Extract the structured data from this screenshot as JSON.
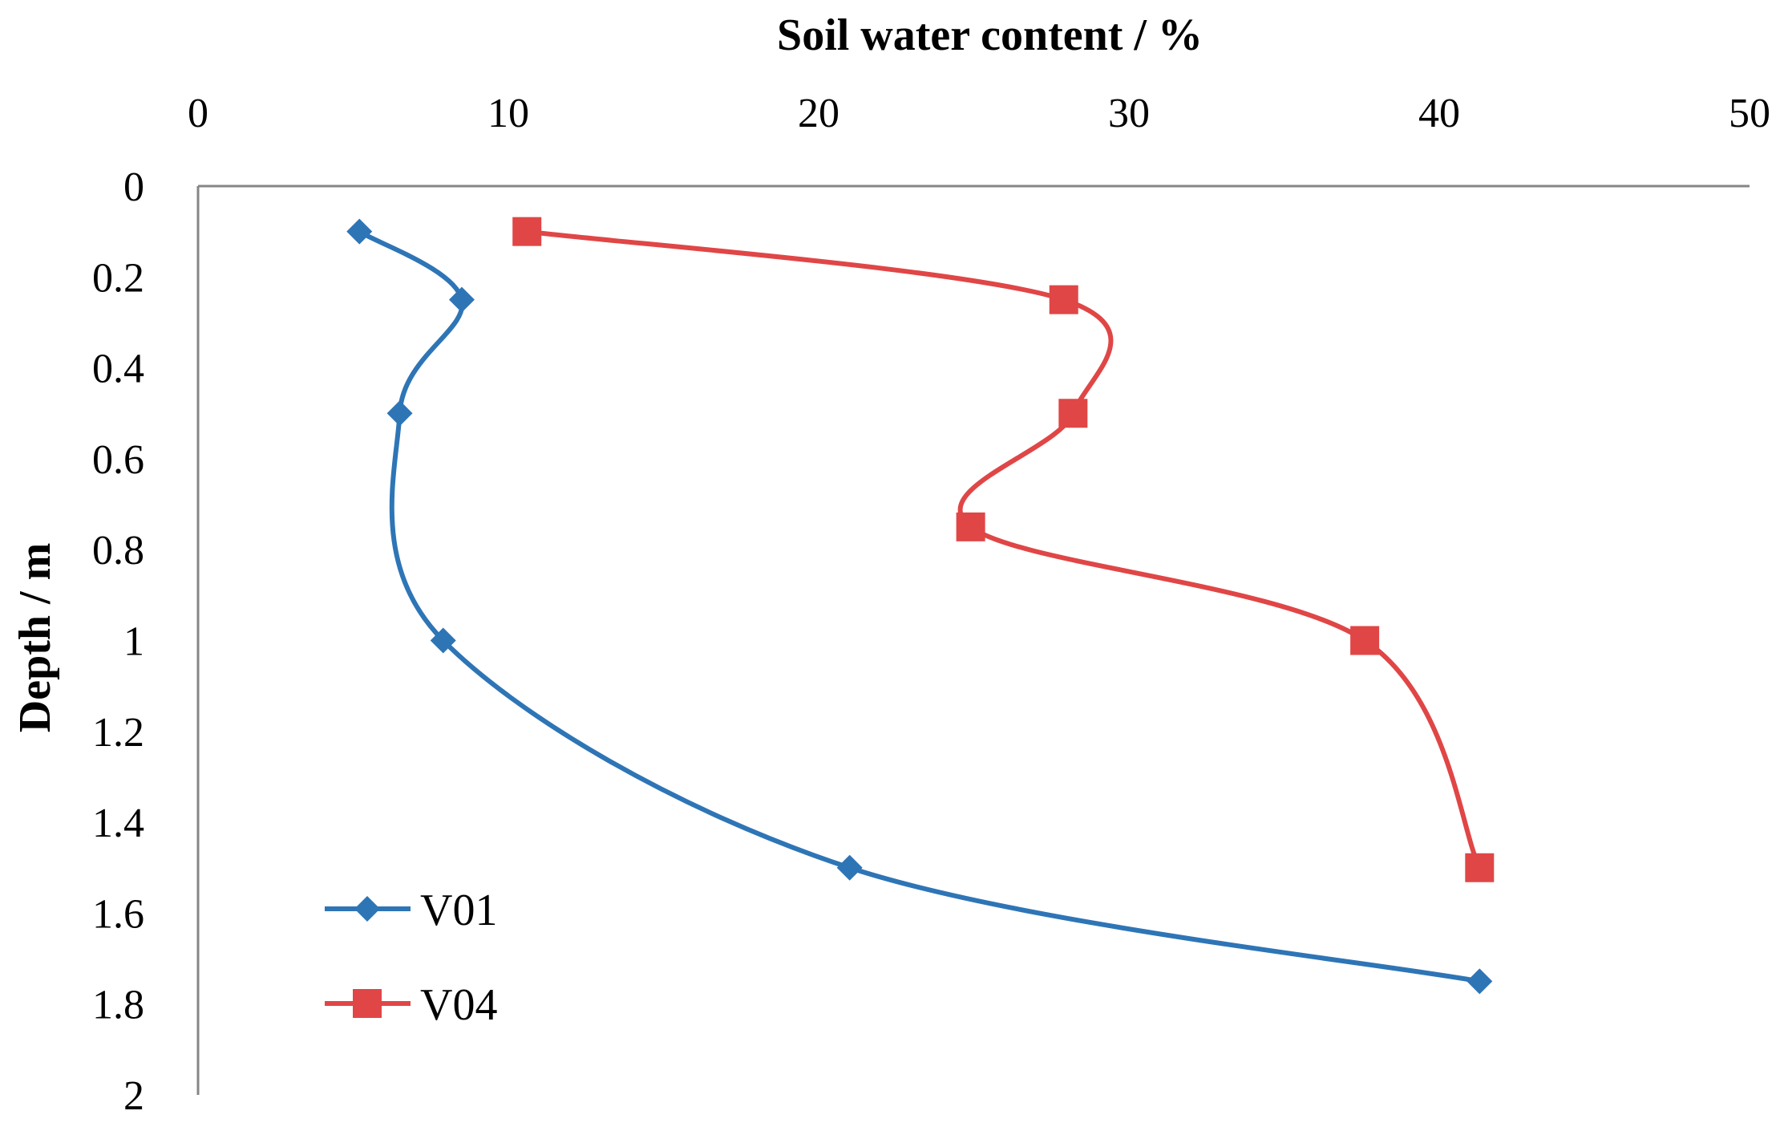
{
  "chart_data": {
    "type": "line",
    "xlabel": "Soil water content / %",
    "ylabel": "Depth / m",
    "xlim": [
      0,
      50
    ],
    "ylim": [
      0,
      2
    ],
    "x_axis_position": "top",
    "y_axis_reversed": true,
    "x_ticks": [
      "0",
      "10",
      "20",
      "30",
      "40",
      "50"
    ],
    "y_ticks": [
      "0",
      "0.2",
      "0.4",
      "0.6",
      "0.8",
      "1",
      "1.2",
      "1.4",
      "1.6",
      "1.8",
      "2"
    ],
    "grid": false,
    "legend_position": "bottom-left",
    "smooth": true,
    "series": [
      {
        "name": "V01",
        "color": "#2E75B6",
        "marker": "diamond",
        "points": [
          {
            "x": 5.2,
            "y": 0.1
          },
          {
            "x": 8.5,
            "y": 0.25
          },
          {
            "x": 6.5,
            "y": 0.5
          },
          {
            "x": 7.9,
            "y": 1.0
          },
          {
            "x": 21.0,
            "y": 1.5
          },
          {
            "x": 41.3,
            "y": 1.75
          }
        ]
      },
      {
        "name": "V04",
        "color": "#E04646",
        "marker": "square",
        "points": [
          {
            "x": 10.6,
            "y": 0.1
          },
          {
            "x": 27.9,
            "y": 0.25
          },
          {
            "x": 28.2,
            "y": 0.5
          },
          {
            "x": 24.9,
            "y": 0.75
          },
          {
            "x": 37.6,
            "y": 1.0
          },
          {
            "x": 41.3,
            "y": 1.5
          }
        ]
      }
    ]
  }
}
